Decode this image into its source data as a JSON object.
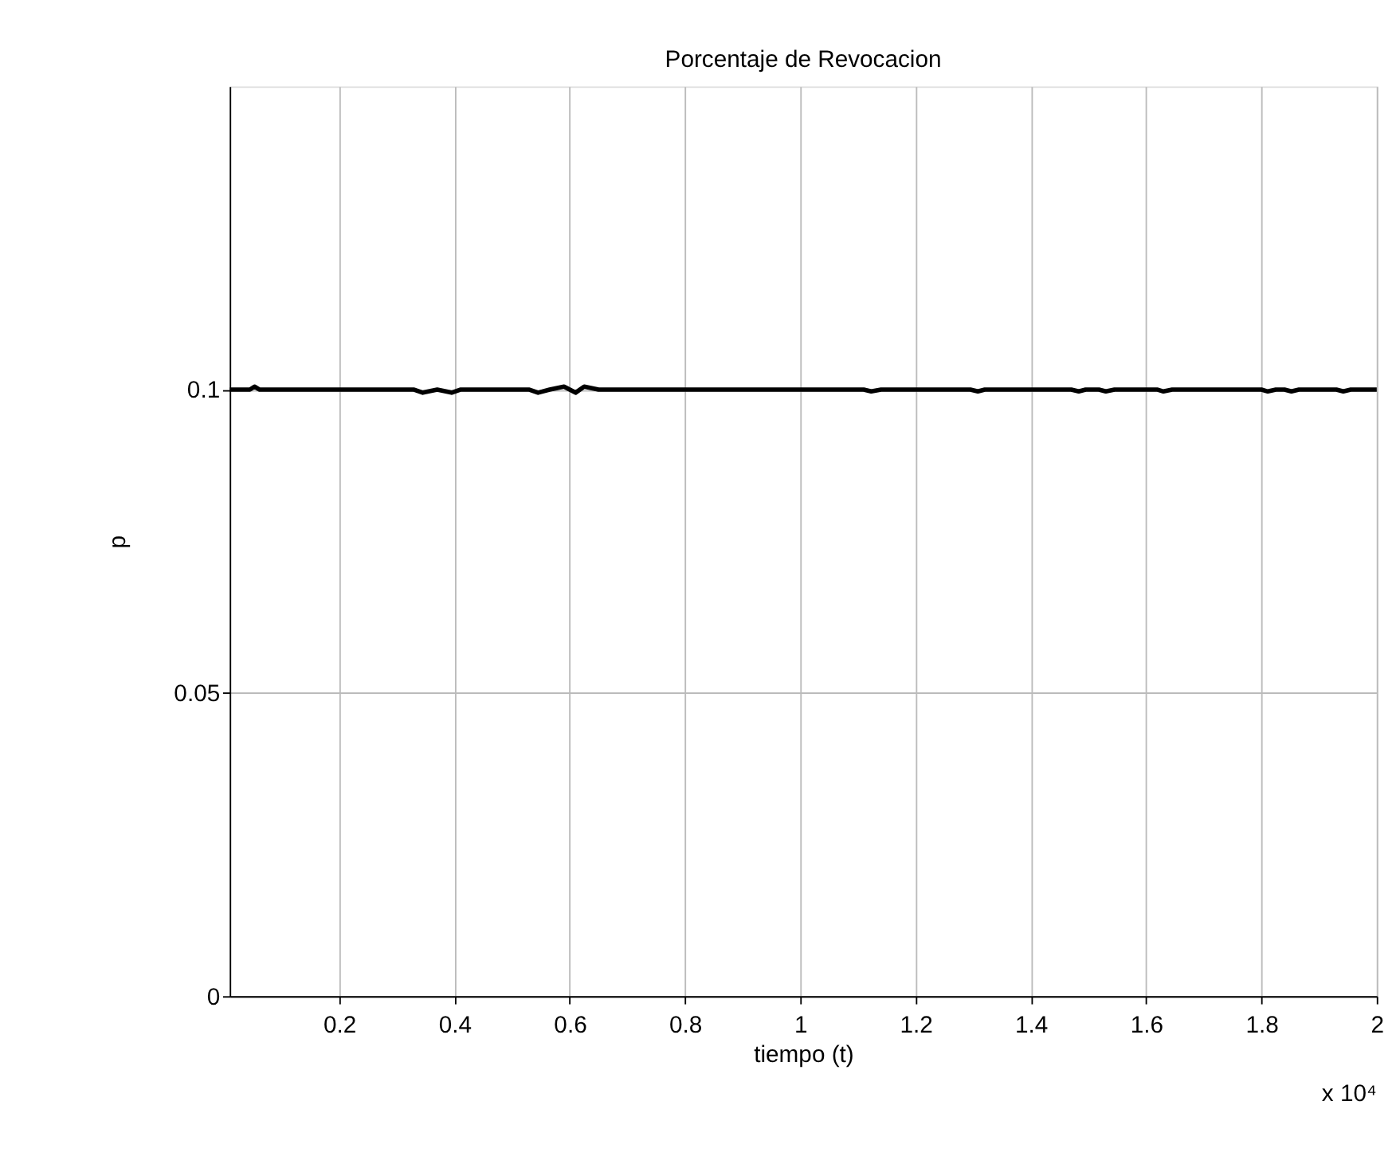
{
  "chart_data": {
    "type": "line",
    "title": "Porcentaje de Revocacion",
    "xlabel": "tiempo (t)",
    "ylabel": "p",
    "annotations": [
      "x 10⁴"
    ],
    "series": [
      {
        "color": "#000000",
        "x": [
          0.01,
          0.045,
          0.053,
          0.062,
          0.33,
          0.345,
          0.37,
          0.395,
          0.41,
          0.53,
          0.545,
          0.565,
          0.59,
          0.61,
          0.625,
          0.65,
          1.11,
          1.123,
          1.14,
          1.295,
          1.308,
          1.32,
          1.47,
          1.483,
          1.495,
          1.518,
          1.53,
          1.545,
          1.62,
          1.63,
          1.645,
          1.8,
          1.811,
          1.825,
          1.84,
          1.852,
          1.865,
          1.93,
          1.942,
          1.955,
          2.0
        ],
        "values": [
          0.1,
          0.1,
          0.1005,
          0.1,
          0.1,
          0.0995,
          0.1,
          0.0995,
          0.1,
          0.1,
          0.0995,
          0.1,
          0.1005,
          0.0995,
          0.1005,
          0.1,
          0.1,
          0.0997,
          0.1,
          0.1,
          0.0997,
          0.1,
          0.1,
          0.0997,
          0.1,
          0.1,
          0.0997,
          0.1,
          0.1,
          0.0997,
          0.1,
          0.1,
          0.0997,
          0.1,
          0.1,
          0.0997,
          0.1,
          0.1,
          0.0997,
          0.1,
          0.1
        ]
      }
    ],
    "xlim": [
      0.01,
      2
    ],
    "xticks": [
      0.2,
      0.4,
      0.6,
      0.8,
      1,
      1.2,
      1.4,
      1.6,
      1.8,
      2
    ],
    "ylim": [
      0,
      0.15
    ],
    "yticks": [
      0,
      0.05,
      0.1
    ],
    "grid": true,
    "line_style": "solid"
  }
}
